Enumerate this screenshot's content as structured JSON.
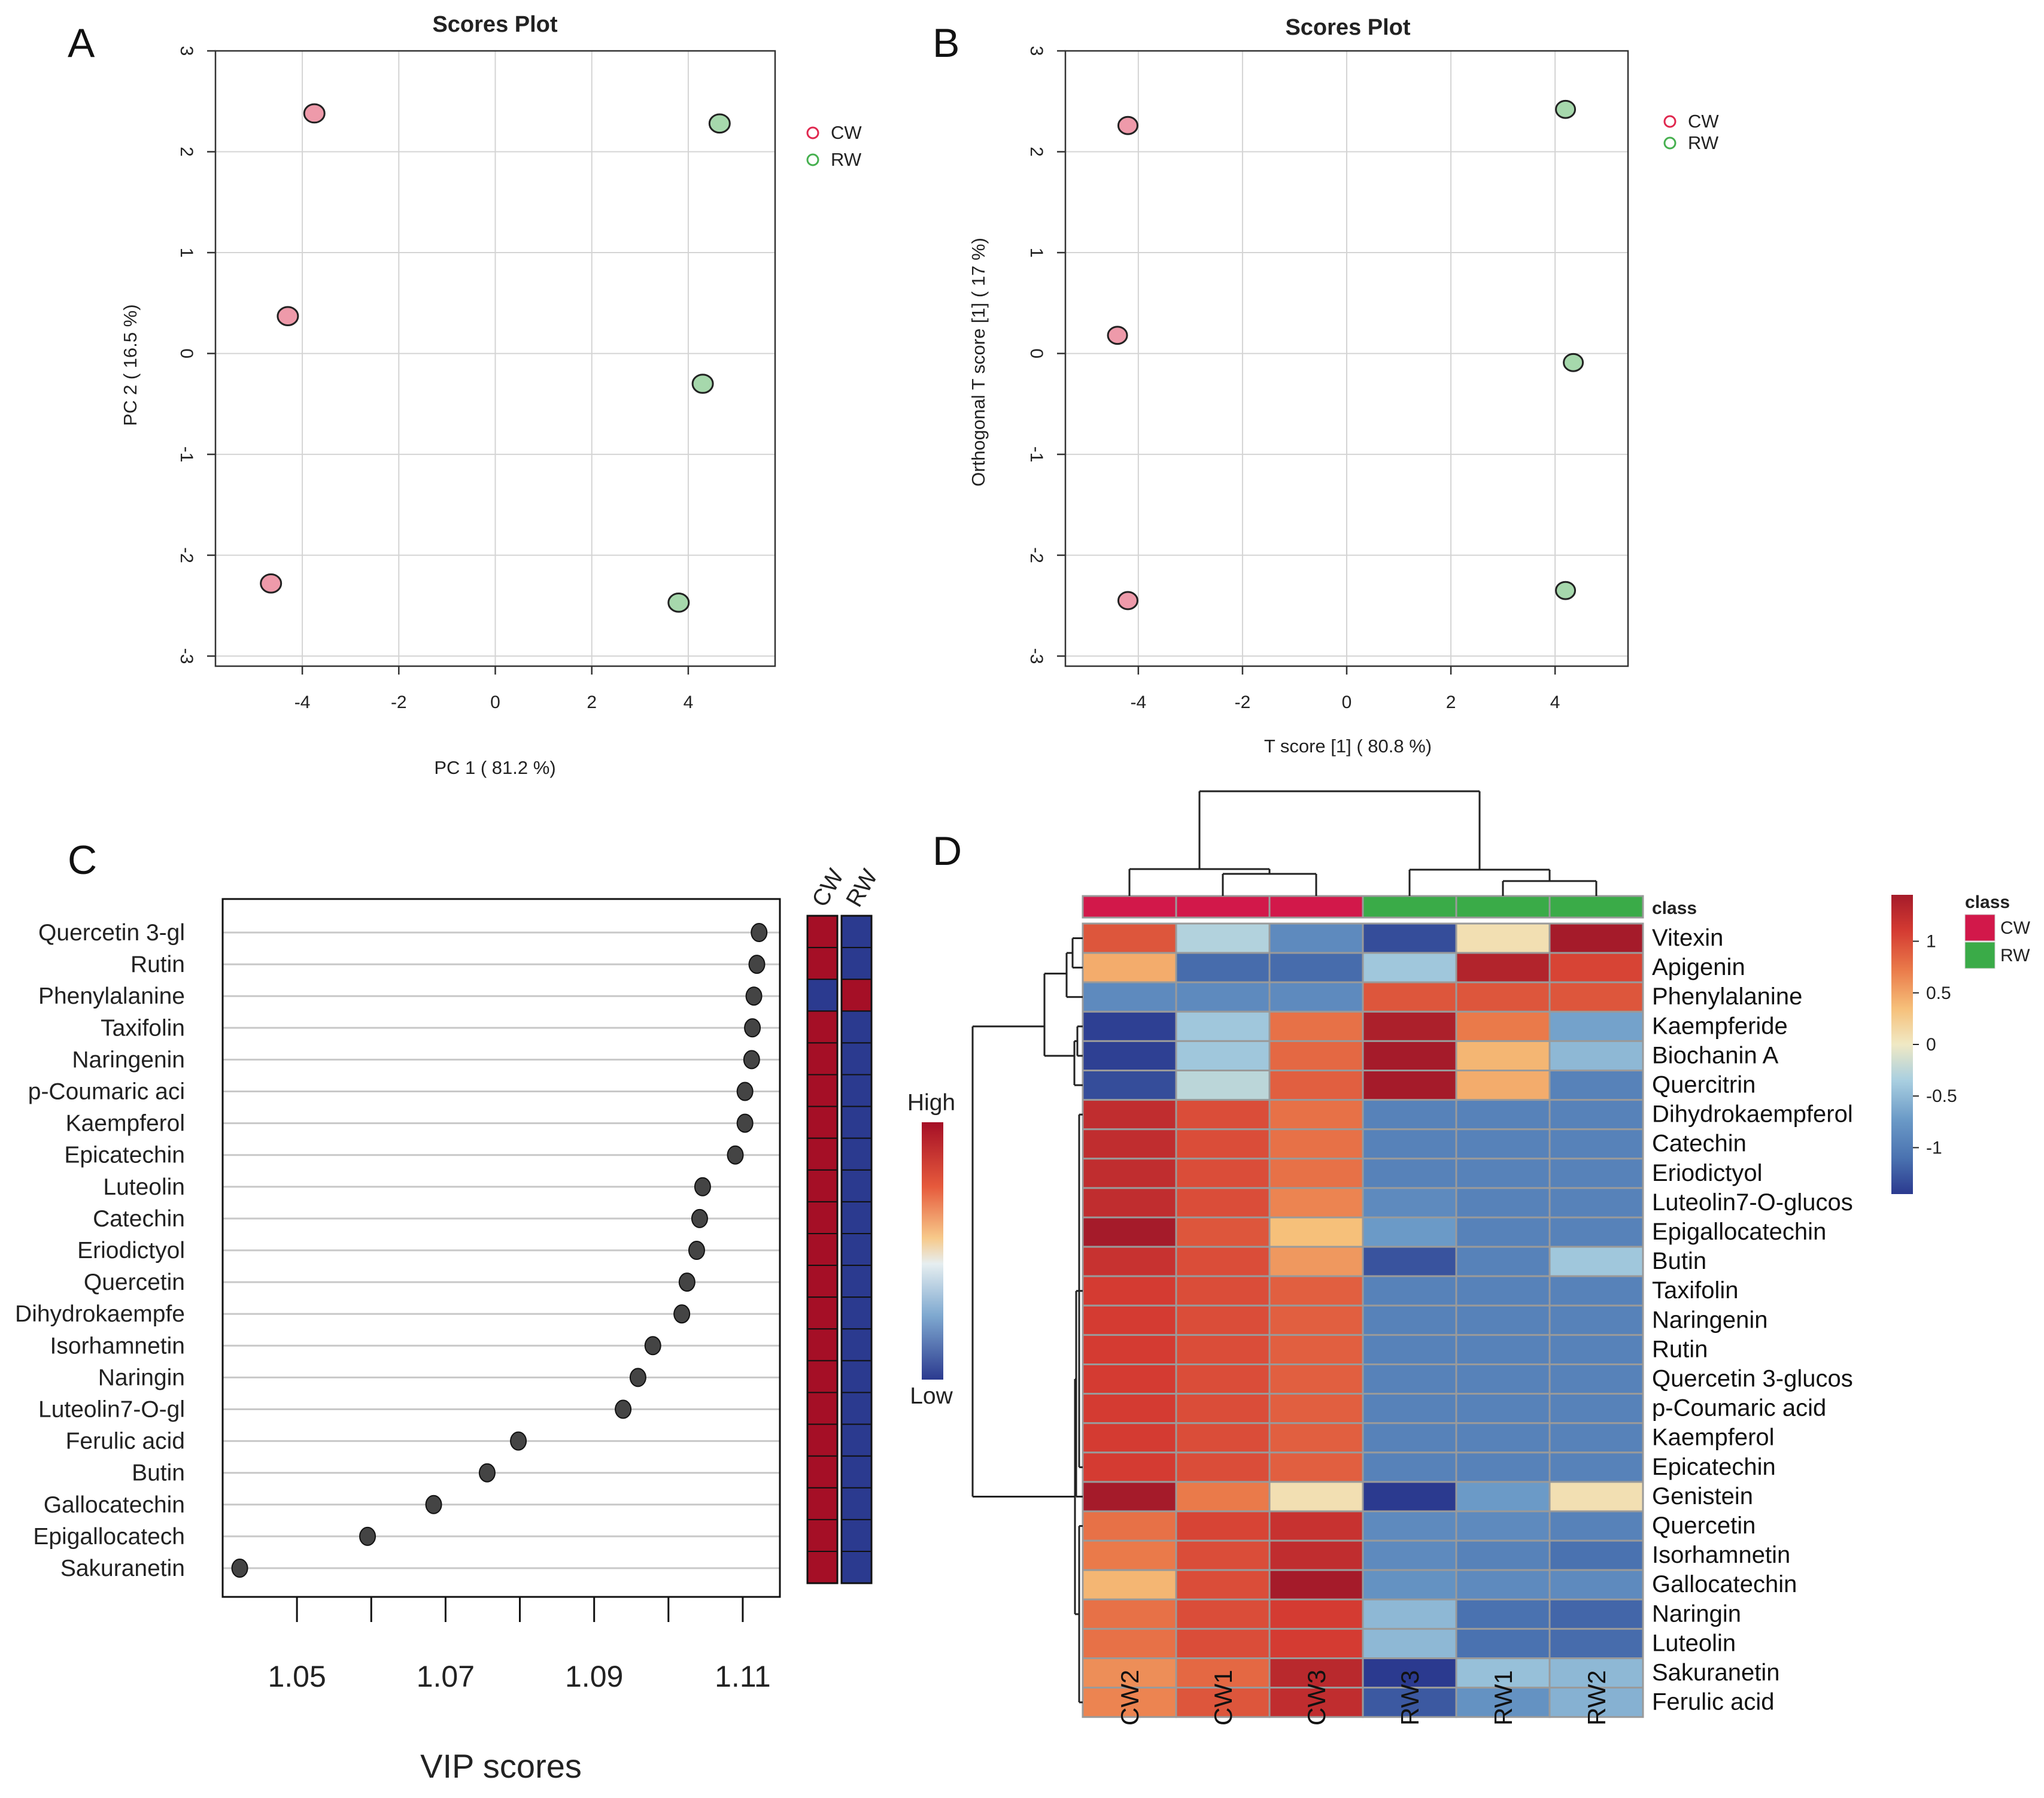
{
  "colors": {
    "cw_fill": "#ee9aaa",
    "rw_fill": "#a6d8ac",
    "cw_legend": "#e0284f",
    "rw_legend": "#46b04f",
    "class_cw": "#d2184a",
    "class_rw": "#3aab48",
    "hm_low": "#2b3a8f",
    "hm_high": "#a50f26"
  },
  "panels": {
    "A": "A",
    "B": "B",
    "C": "C",
    "D": "D"
  },
  "chart_data": [
    {
      "id": "A",
      "type": "scatter",
      "title": "Scores Plot",
      "xlabel": "PC 1 ( 81.2 %)",
      "ylabel": "PC 2 ( 16.5 %)",
      "xlim": [
        -5.8,
        5.8
      ],
      "ylim": [
        -3.1,
        3.0
      ],
      "xticks": [
        -4,
        -2,
        0,
        2,
        4
      ],
      "yticks": [
        -3,
        -2,
        -1,
        0,
        1,
        2,
        3
      ],
      "xtick_labels": [
        "-4",
        "-2",
        "0",
        "2",
        "4"
      ],
      "ytick_labels": [
        "-3",
        "-2",
        "-1",
        "0",
        "1",
        "2",
        "3"
      ],
      "legend": [
        "CW",
        "RW"
      ],
      "series": [
        {
          "name": "CW",
          "x": [
            -3.75,
            -4.3,
            -4.65
          ],
          "y": [
            2.38,
            0.37,
            -2.28
          ]
        },
        {
          "name": "RW",
          "x": [
            4.65,
            4.3,
            3.8
          ],
          "y": [
            2.28,
            -0.3,
            -2.47
          ]
        }
      ]
    },
    {
      "id": "B",
      "type": "scatter",
      "title": "Scores Plot",
      "xlabel": "T score [1] ( 80.8 %)",
      "ylabel": "Orthogonal T score [1] ( 17 %)",
      "xlim": [
        -5.4,
        5.4
      ],
      "ylim": [
        -3.1,
        3.0
      ],
      "xticks": [
        -4,
        -2,
        0,
        2,
        4
      ],
      "yticks": [
        -3,
        -2,
        -1,
        0,
        1,
        2,
        3
      ],
      "xtick_labels": [
        "-4",
        "-2",
        "0",
        "2",
        "4"
      ],
      "ytick_labels": [
        "-3",
        "-2",
        "-1",
        "0",
        "1",
        "2",
        "3"
      ],
      "legend": [
        "CW",
        "RW"
      ],
      "series": [
        {
          "name": "CW",
          "x": [
            -4.2,
            -4.4,
            -4.2
          ],
          "y": [
            2.26,
            0.18,
            -2.45
          ]
        },
        {
          "name": "RW",
          "x": [
            4.2,
            4.35,
            4.2
          ],
          "y": [
            2.42,
            -0.09,
            -2.35
          ]
        }
      ]
    },
    {
      "id": "C",
      "type": "scatter",
      "xlabel": "VIP scores",
      "xlim": [
        1.04,
        1.115
      ],
      "xticks": [
        1.05,
        1.07,
        1.09,
        1.11
      ],
      "xtick_labels": [
        "1.05",
        "1.07",
        "1.09",
        "1.11"
      ],
      "minor_ticks": [
        1.05,
        1.06,
        1.07,
        1.08,
        1.09,
        1.1,
        1.11
      ],
      "column_labels": [
        "CW",
        "RW"
      ],
      "scale_labels": [
        "High",
        "Low"
      ],
      "features": [
        "Quercetin 3-gl",
        "Rutin",
        "Phenylalanine",
        "Taxifolin",
        "Naringenin",
        "p-Coumaric aci",
        "Kaempferol",
        "Epicatechin",
        "Luteolin",
        "Catechin",
        "Eriodictyol",
        "Quercetin",
        "Dihydrokaempfe",
        "Isorhamnetin",
        "Naringin",
        "Luteolin7-O-gl",
        "Ferulic acid",
        "Butin",
        "Gallocatechin",
        "Epigallocatech",
        "Sakuranetin"
      ],
      "values": [
        1.1122,
        1.1119,
        1.1115,
        1.1113,
        1.1112,
        1.1103,
        1.1103,
        1.109,
        1.1046,
        1.1042,
        1.1038,
        1.1025,
        1.1018,
        1.0979,
        1.0959,
        1.0939,
        1.0798,
        1.0756,
        1.0684,
        1.0595,
        1.0423
      ],
      "cw_high": [
        true,
        true,
        false,
        true,
        true,
        true,
        true,
        true,
        true,
        true,
        true,
        true,
        true,
        true,
        true,
        true,
        true,
        true,
        true,
        true,
        true
      ]
    },
    {
      "id": "D",
      "type": "heatmap",
      "columns": [
        "CW2",
        "CW1",
        "CW3",
        "RW3",
        "RW1",
        "RW2"
      ],
      "column_class": [
        "CW",
        "CW",
        "CW",
        "RW",
        "RW",
        "RW"
      ],
      "class_title": "class",
      "class_legend": [
        "CW",
        "RW"
      ],
      "colorbar_ticks": [
        1,
        0.5,
        0,
        -0.5,
        -1
      ],
      "colorbar_tick_labels": [
        "1",
        "0.5",
        "0",
        "-0.5",
        "-1"
      ],
      "rows": [
        "Vitexin",
        "Apigenin",
        "Phenylalanine",
        "Kaempferide",
        "Biochanin A",
        "Quercitrin",
        "Dihydrokaempferol",
        "Catechin",
        "Eriodictyol",
        "Luteolin7-O-glucos",
        "Epigallocatechin",
        "Butin",
        "Taxifolin",
        "Naringenin",
        "Rutin",
        "Quercetin 3-glucos",
        "p-Coumaric acid",
        "Kaempferol",
        "Epicatechin",
        "Genistein",
        "Quercetin",
        "Isorhamnetin",
        "Gallocatechin",
        "Naringin",
        "Luteolin",
        "Sakuranetin",
        "Ferulic acid"
      ],
      "values": [
        [
          0.95,
          -0.35,
          -0.85,
          -1.3,
          0.1,
          1.45
        ],
        [
          0.5,
          -1.05,
          -1.05,
          -0.45,
          1.35,
          1.05
        ],
        [
          -0.85,
          -0.85,
          -0.85,
          0.95,
          0.95,
          0.95
        ],
        [
          -1.4,
          -0.45,
          0.8,
          1.4,
          0.75,
          -0.7
        ],
        [
          -1.4,
          -0.45,
          0.85,
          1.45,
          0.45,
          -0.55
        ],
        [
          -1.3,
          -0.3,
          0.9,
          1.45,
          0.5,
          -0.9
        ],
        [
          1.25,
          1.0,
          0.8,
          -0.9,
          -0.9,
          -0.9
        ],
        [
          1.25,
          1.0,
          0.8,
          -0.9,
          -0.9,
          -0.9
        ],
        [
          1.25,
          1.0,
          0.8,
          -0.9,
          -0.9,
          -0.9
        ],
        [
          1.25,
          1.0,
          0.7,
          -0.85,
          -0.9,
          -0.9
        ],
        [
          1.45,
          0.95,
          0.4,
          -0.75,
          -0.9,
          -0.9
        ],
        [
          1.2,
          1.0,
          0.6,
          -1.25,
          -0.9,
          -0.45
        ],
        [
          1.1,
          1.0,
          0.9,
          -0.9,
          -0.9,
          -0.9
        ],
        [
          1.1,
          1.0,
          0.9,
          -0.9,
          -0.9,
          -0.9
        ],
        [
          1.1,
          1.0,
          0.9,
          -0.9,
          -0.9,
          -0.9
        ],
        [
          1.1,
          1.0,
          0.9,
          -0.9,
          -0.9,
          -0.9
        ],
        [
          1.1,
          1.0,
          0.9,
          -0.9,
          -0.9,
          -0.9
        ],
        [
          1.1,
          1.0,
          0.9,
          -0.9,
          -0.9,
          -0.9
        ],
        [
          1.1,
          1.0,
          0.9,
          -0.9,
          -0.9,
          -0.9
        ],
        [
          1.45,
          0.75,
          0.1,
          -1.45,
          -0.75,
          0.1
        ],
        [
          0.8,
          1.05,
          1.2,
          -0.85,
          -0.85,
          -0.9
        ],
        [
          0.75,
          1.0,
          1.25,
          -0.85,
          -0.9,
          -1.0
        ],
        [
          0.45,
          1.0,
          1.45,
          -0.8,
          -0.85,
          -0.85
        ],
        [
          0.8,
          1.0,
          1.1,
          -0.55,
          -1.0,
          -1.1
        ],
        [
          0.8,
          1.0,
          1.1,
          -0.55,
          -1.0,
          -1.05
        ],
        [
          0.65,
          0.85,
          1.3,
          -1.45,
          -0.5,
          -0.55
        ],
        [
          0.7,
          0.95,
          1.25,
          -1.2,
          -0.8,
          -0.6
        ]
      ]
    }
  ]
}
